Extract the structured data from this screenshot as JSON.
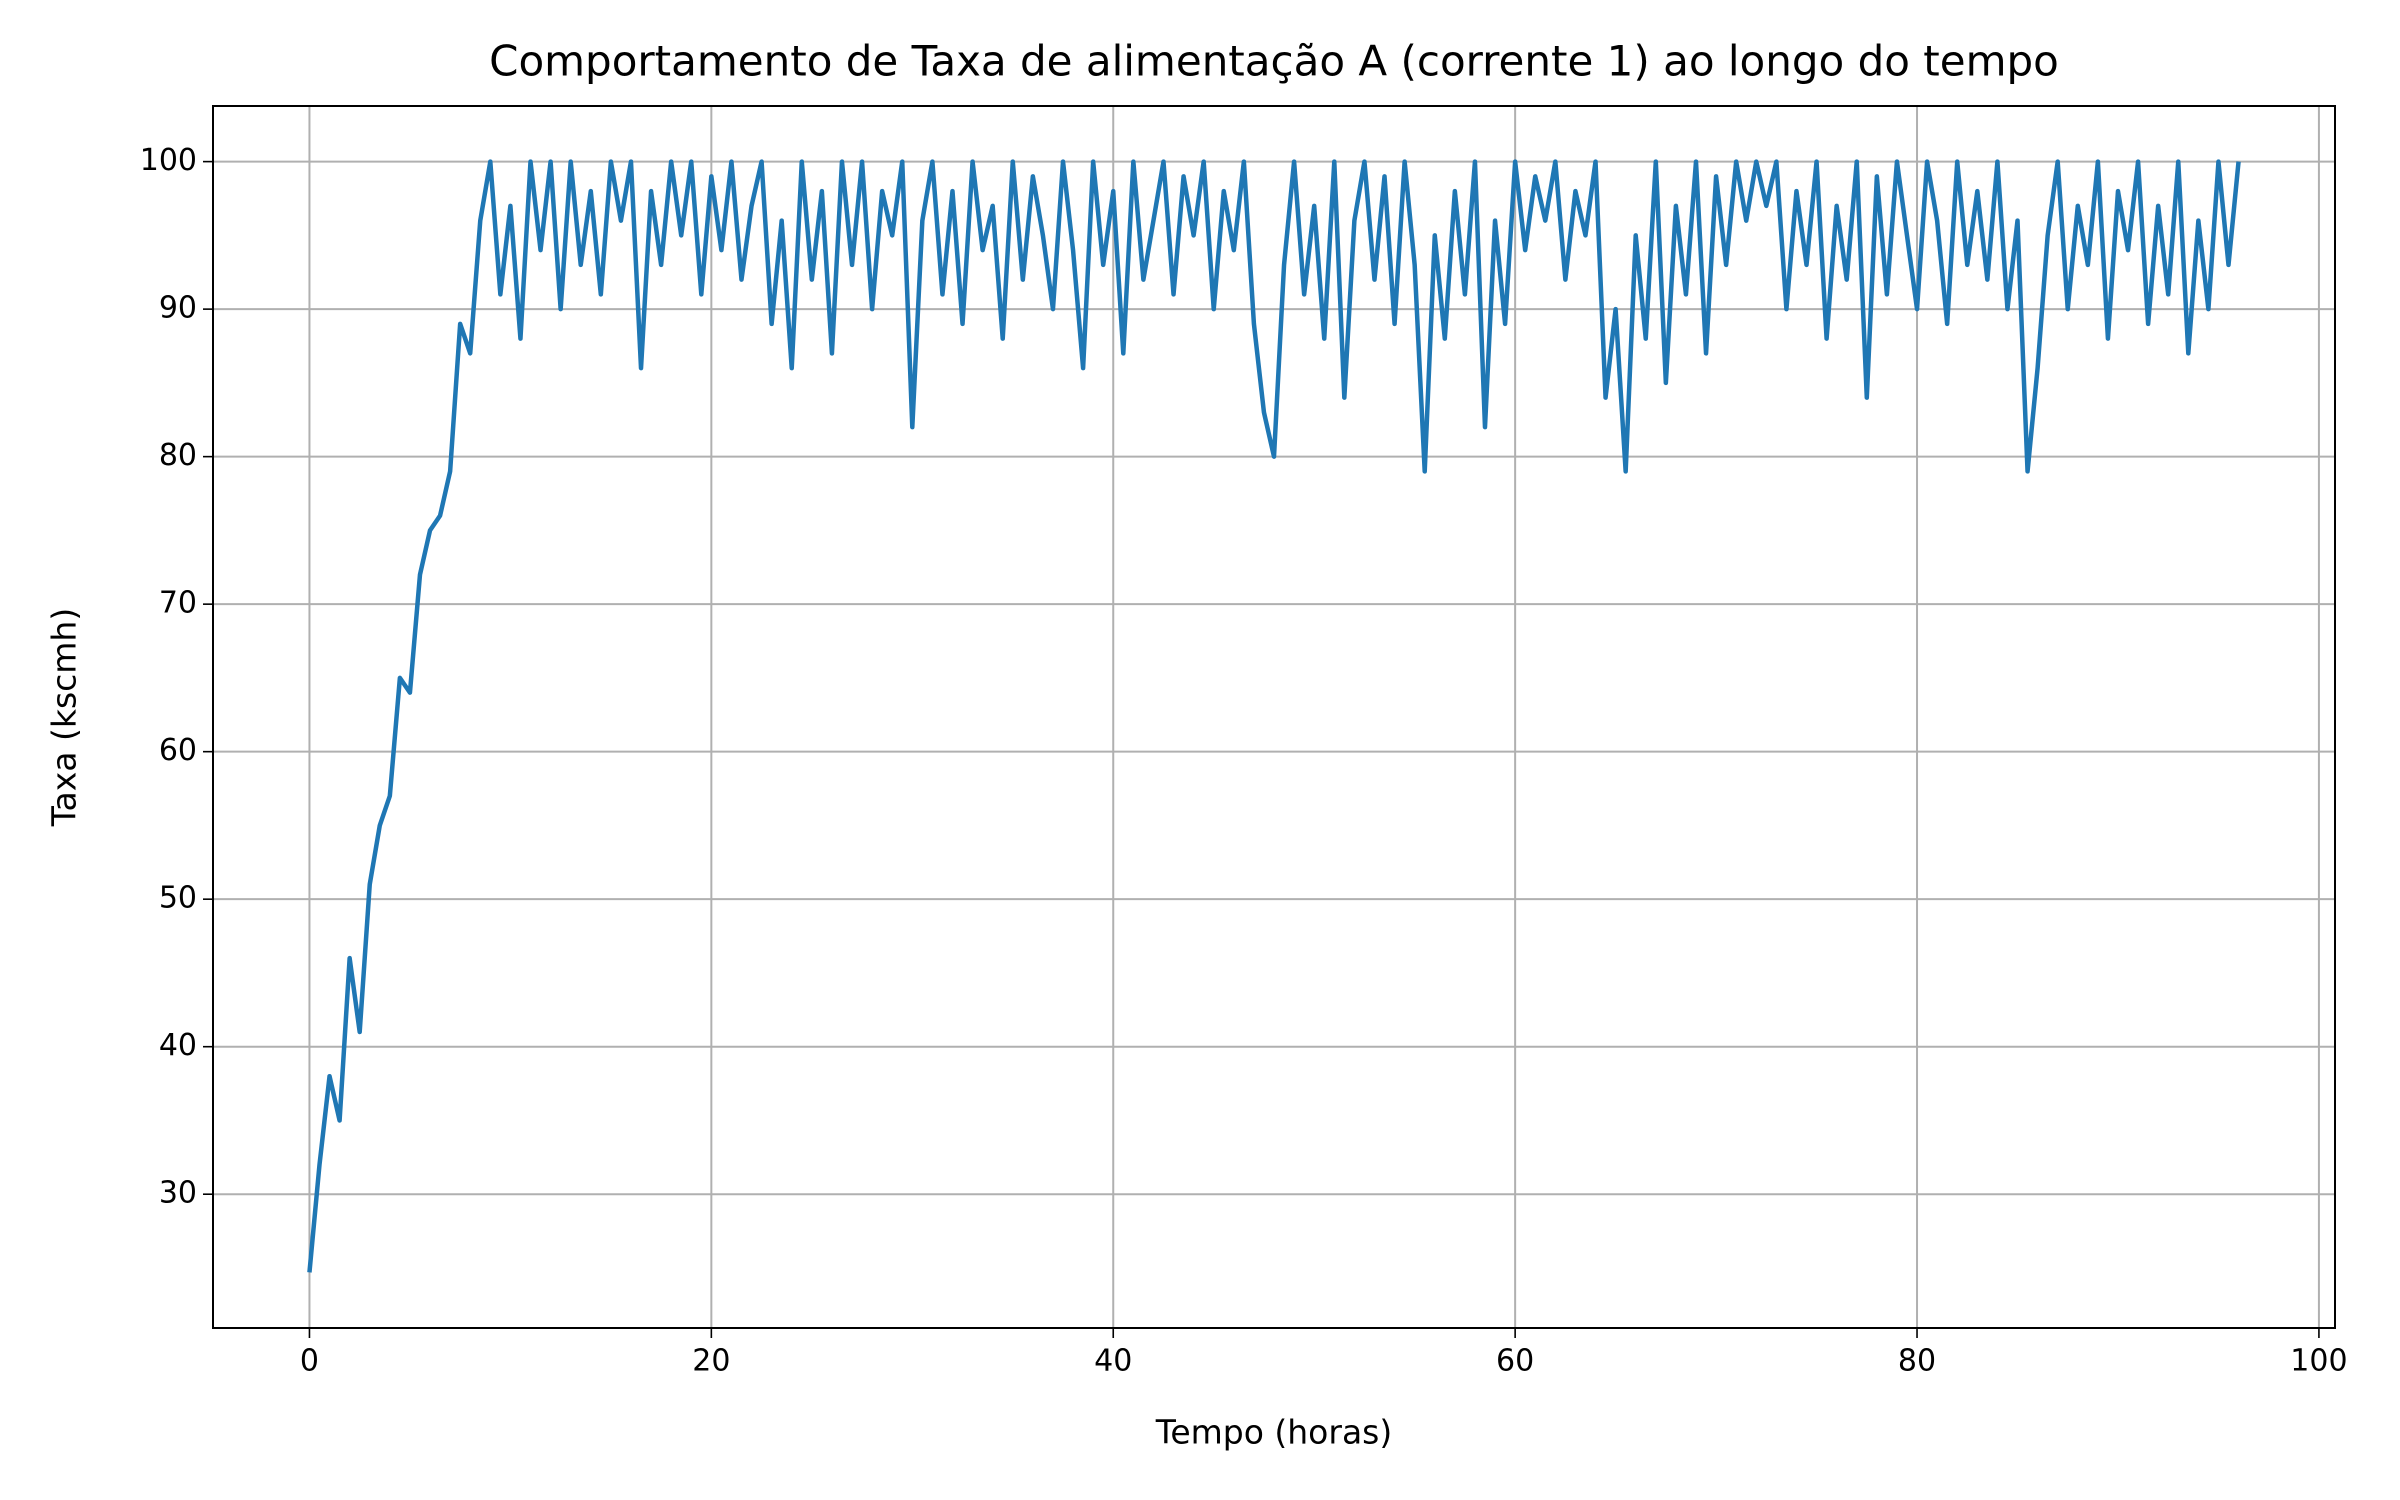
{
  "chart_data": {
    "type": "line",
    "title": "Comportamento de Taxa de alimentação A (corrente 1) ao longo do tempo",
    "x_label": "Tempo (horas)",
    "y_label": "Taxa (kscmh)",
    "xlim": [
      -4.8,
      100.8
    ],
    "ylim": [
      20.93,
      103.77
    ],
    "xticks": [
      0,
      20,
      40,
      60,
      80,
      100
    ],
    "yticks": [
      30,
      40,
      50,
      60,
      70,
      80,
      90,
      100
    ],
    "grid": true,
    "x": [
      0,
      0.5,
      1,
      1.5,
      2,
      2.5,
      3,
      3.5,
      4,
      4.5,
      5,
      5.5,
      6,
      6.5,
      7,
      7.5,
      8,
      8.5,
      9,
      9.5,
      10,
      10.5,
      11,
      11.5,
      12,
      12.5,
      13,
      13.5,
      14,
      14.5,
      15,
      15.5,
      16,
      16.5,
      17,
      17.5,
      18,
      18.5,
      19,
      19.5,
      20,
      20.5,
      21,
      21.5,
      22,
      22.5,
      23,
      23.5,
      24,
      24.5,
      25,
      25.5,
      26,
      26.5,
      27,
      27.5,
      28,
      28.5,
      29,
      29.5,
      30,
      30.5,
      31,
      31.5,
      32,
      32.5,
      33,
      33.5,
      34,
      34.5,
      35,
      35.5,
      36,
      36.5,
      37,
      37.5,
      38,
      38.5,
      39,
      39.5,
      40,
      40.5,
      41,
      41.5,
      42,
      42.5,
      43,
      43.5,
      44,
      44.5,
      45,
      45.5,
      46,
      46.5,
      47,
      47.5,
      48,
      48.5,
      49,
      49.5,
      50,
      50.5,
      51,
      51.5,
      52,
      52.5,
      53,
      53.5,
      54,
      54.5,
      55,
      55.5,
      56,
      56.5,
      57,
      57.5,
      58,
      58.5,
      59,
      59.5,
      60,
      60.5,
      61,
      61.5,
      62,
      62.5,
      63,
      63.5,
      64,
      64.5,
      65,
      65.5,
      66,
      66.5,
      67,
      67.5,
      68,
      68.5,
      69,
      69.5,
      70,
      70.5,
      71,
      71.5,
      72,
      72.5,
      73,
      73.5,
      74,
      74.5,
      75,
      75.5,
      76,
      76.5,
      77,
      77.5,
      78,
      78.5,
      79,
      79.5,
      80,
      80.5,
      81,
      81.5,
      82,
      82.5,
      83,
      83.5,
      84,
      84.5,
      85,
      85.5,
      86,
      86.5,
      87,
      87.5,
      88,
      88.5,
      89,
      89.5,
      90,
      90.5,
      91,
      91.5,
      92,
      92.5,
      93,
      93.5,
      94,
      94.5,
      95,
      95.5,
      96
    ],
    "series": [
      {
        "name": "Taxa de alimentação A (corrente 1)",
        "color": "#1f77b4",
        "values": [
          24.7,
          32,
          38,
          35,
          46,
          41,
          51,
          55,
          57,
          65,
          64,
          72,
          75,
          76,
          79,
          89,
          87,
          96,
          100,
          91,
          97,
          88,
          100,
          94,
          100,
          90,
          100,
          93,
          98,
          91,
          100,
          96,
          100,
          86,
          98,
          93,
          100,
          95,
          100,
          91,
          99,
          94,
          100,
          92,
          97,
          100,
          89,
          96,
          86,
          100,
          92,
          98,
          87,
          100,
          93,
          100,
          90,
          98,
          95,
          100,
          82,
          96,
          100,
          91,
          98,
          89,
          100,
          94,
          97,
          88,
          100,
          92,
          99,
          95,
          90,
          100,
          94,
          86,
          100,
          93,
          98,
          87,
          100,
          92,
          96,
          100,
          91,
          99,
          95,
          100,
          90,
          98,
          94,
          100,
          89,
          83,
          80,
          93,
          100,
          91,
          97,
          88,
          100,
          84,
          96,
          100,
          92,
          99,
          89,
          100,
          93,
          79,
          95,
          88,
          98,
          91,
          100,
          82,
          96,
          89,
          100,
          94,
          99,
          96,
          100,
          92,
          98,
          95,
          100,
          84,
          90,
          79,
          95,
          88,
          100,
          85,
          97,
          91,
          100,
          87,
          99,
          93,
          100,
          96,
          100,
          97,
          100,
          90,
          98,
          93,
          100,
          88,
          97,
          92,
          100,
          84,
          99,
          91,
          100,
          95,
          90,
          100,
          96,
          89,
          100,
          93,
          98,
          92,
          100,
          90,
          96,
          79,
          86,
          95,
          100,
          90,
          97,
          93,
          100,
          88,
          98,
          94,
          100,
          89,
          97,
          91,
          100,
          87,
          96,
          90,
          100,
          93,
          100
        ]
      }
    ]
  }
}
